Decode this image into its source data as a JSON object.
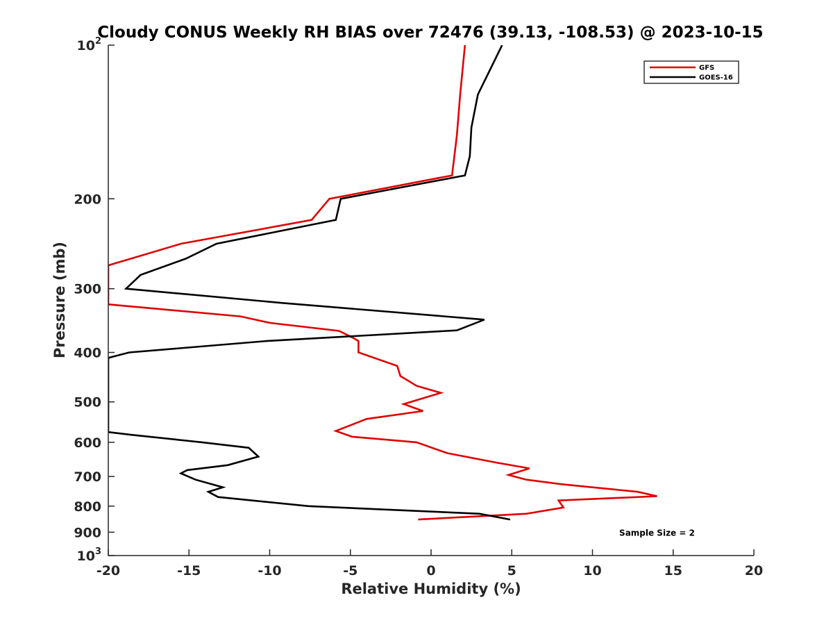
{
  "chart_data": {
    "type": "line",
    "title": "Cloudy CONUS Weekly RH BIAS over 72476 (39.13, -108.53) @ 2023-10-15",
    "xlabel": "Relative Humidity (%)",
    "ylabel": "Pressure (mb)",
    "xlim": [
      -20,
      20
    ],
    "ylim": [
      100,
      1000
    ],
    "y_scale": "log",
    "y_reversed": true,
    "grid": false,
    "legend_position": "top-right",
    "x_ticks": [
      -20,
      -15,
      -10,
      -5,
      0,
      5,
      10,
      15,
      20
    ],
    "x_tick_labels": [
      "-20",
      "-15",
      "-10",
      "-5",
      "0",
      "5",
      "10",
      "15",
      "20"
    ],
    "y_ticks": [
      {
        "value": 100,
        "base": "10",
        "exp": "2"
      },
      {
        "value": 200,
        "label": "200"
      },
      {
        "value": 300,
        "label": "300"
      },
      {
        "value": 400,
        "label": "400"
      },
      {
        "value": 500,
        "label": "500"
      },
      {
        "value": 600,
        "label": "600"
      },
      {
        "value": 700,
        "label": "700"
      },
      {
        "value": 800,
        "label": "800"
      },
      {
        "value": 900,
        "label": "900"
      },
      {
        "value": 1000,
        "base": "10",
        "exp": "3"
      }
    ],
    "series": [
      {
        "name": "GFS",
        "color": "#e00000",
        "points": [
          [
            2.1,
            100
          ],
          [
            1.8,
            125
          ],
          [
            1.6,
            150
          ],
          [
            1.3,
            180
          ],
          [
            -6.3,
            200
          ],
          [
            -7.4,
            220
          ],
          [
            -15.5,
            245
          ],
          [
            -18.6,
            262
          ],
          [
            -20.0,
            270
          ],
          [
            -20.0,
            322
          ],
          [
            -11.8,
            340
          ],
          [
            -10.0,
            350
          ],
          [
            -5.7,
            363
          ],
          [
            -4.8,
            375
          ],
          [
            -4.5,
            380
          ],
          [
            -4.5,
            400
          ],
          [
            -2.1,
            425
          ],
          [
            -1.9,
            445
          ],
          [
            -0.9,
            465
          ],
          [
            0.6,
            480
          ],
          [
            -1.7,
            505
          ],
          [
            -0.5,
            521
          ],
          [
            -4.0,
            540
          ],
          [
            -5.9,
            570
          ],
          [
            -4.9,
            585
          ],
          [
            -0.9,
            600
          ],
          [
            1.0,
            630
          ],
          [
            4.1,
            658
          ],
          [
            6.1,
            675
          ],
          [
            4.8,
            695
          ],
          [
            5.9,
            710
          ],
          [
            8.1,
            725
          ],
          [
            12.8,
            750
          ],
          [
            14.0,
            765
          ],
          [
            7.9,
            780
          ],
          [
            8.2,
            805
          ],
          [
            5.9,
            828
          ],
          [
            -0.8,
            850
          ]
        ]
      },
      {
        "name": "GOES-16",
        "color": "#000000",
        "points": [
          [
            4.4,
            100
          ],
          [
            2.9,
            125
          ],
          [
            2.5,
            145
          ],
          [
            2.4,
            165
          ],
          [
            2.1,
            180
          ],
          [
            -5.6,
            200
          ],
          [
            -5.9,
            220
          ],
          [
            -13.3,
            245
          ],
          [
            -15.2,
            262
          ],
          [
            -18.0,
            282
          ],
          [
            -18.9,
            300
          ],
          [
            -9.2,
            320
          ],
          [
            3.3,
            345
          ],
          [
            1.6,
            362
          ],
          [
            -10.2,
            380
          ],
          [
            -18.7,
            400
          ],
          [
            -20.0,
            410
          ],
          [
            -20.0,
            573
          ],
          [
            -18.6,
            580
          ],
          [
            -14.2,
            600
          ],
          [
            -11.3,
            615
          ],
          [
            -10.7,
            640
          ],
          [
            -12.6,
            665
          ],
          [
            -15.1,
            680
          ],
          [
            -15.5,
            690
          ],
          [
            -14.6,
            710
          ],
          [
            -12.9,
            735
          ],
          [
            -13.8,
            750
          ],
          [
            -13.2,
            768
          ],
          [
            -7.6,
            800
          ],
          [
            3.0,
            828
          ],
          [
            4.9,
            850
          ]
        ]
      }
    ],
    "annotations": [
      {
        "text": "Sample Size = 2",
        "x": 14.0,
        "y": 900
      }
    ]
  }
}
